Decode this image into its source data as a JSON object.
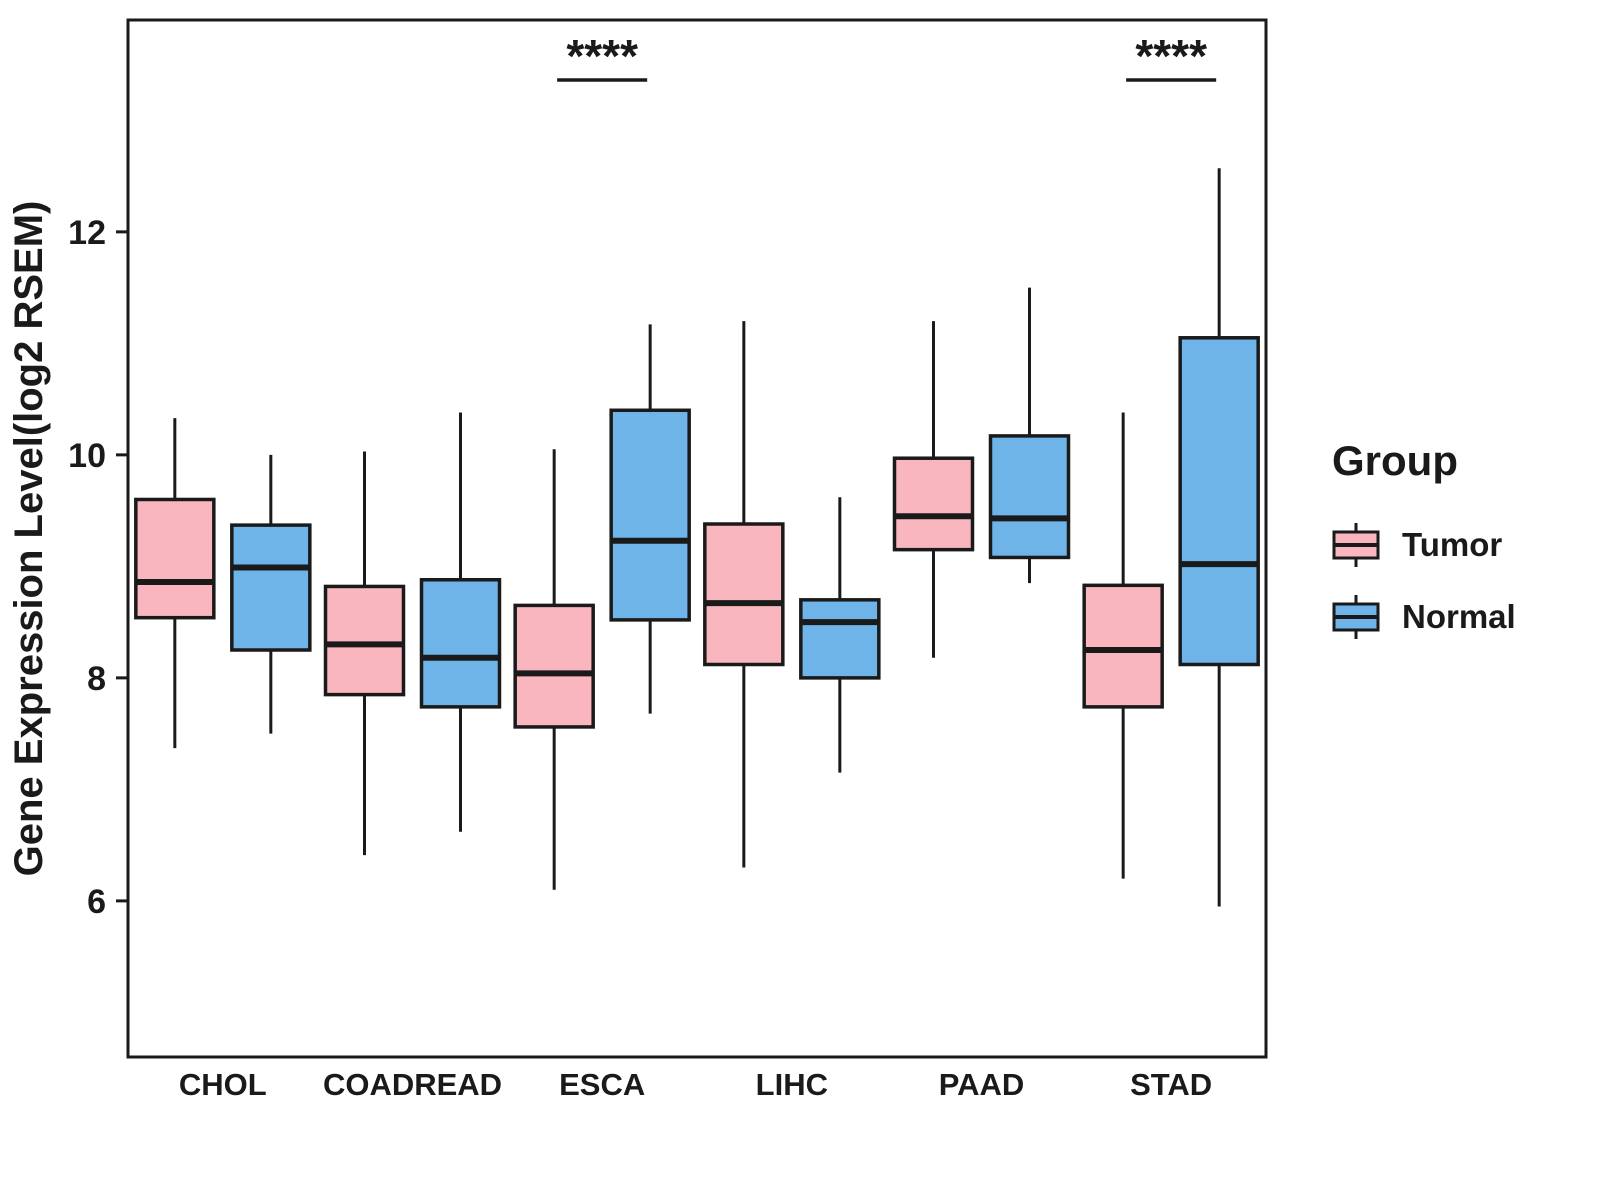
{
  "figure": {
    "background": "#ffffff",
    "frame_color": "#1a1a1a"
  },
  "chart_data": {
    "type": "boxplot",
    "title": "",
    "xlabel": "",
    "ylabel": "Gene Expression Level(log2 RSEM)",
    "ylim": [
      4.6,
      13.9
    ],
    "yticks": [
      6,
      8,
      10,
      12
    ],
    "grid": false,
    "legend_position": "right",
    "categories": [
      "CHOL",
      "COADREAD",
      "ESCA",
      "LIHC",
      "PAAD",
      "STAD"
    ],
    "series": [
      {
        "name": "Tumor",
        "color": "#F9B6BF",
        "boxes": [
          {
            "low": 7.37,
            "q1": 8.54,
            "med": 8.86,
            "q3": 9.6,
            "high": 10.33
          },
          {
            "low": 6.41,
            "q1": 7.85,
            "med": 8.3,
            "q3": 8.82,
            "high": 10.03
          },
          {
            "low": 6.1,
            "q1": 7.56,
            "med": 8.04,
            "q3": 8.65,
            "high": 10.05
          },
          {
            "low": 6.3,
            "q1": 8.12,
            "med": 8.67,
            "q3": 9.38,
            "high": 11.2
          },
          {
            "low": 8.18,
            "q1": 9.15,
            "med": 9.45,
            "q3": 9.97,
            "high": 11.2
          },
          {
            "low": 6.2,
            "q1": 7.74,
            "med": 8.25,
            "q3": 8.83,
            "high": 10.38
          }
        ]
      },
      {
        "name": "Normal",
        "color": "#6FB4E8",
        "boxes": [
          {
            "low": 7.5,
            "q1": 8.25,
            "med": 8.99,
            "q3": 9.37,
            "high": 10.0
          },
          {
            "low": 6.62,
            "q1": 7.74,
            "med": 8.18,
            "q3": 8.88,
            "high": 10.38
          },
          {
            "low": 7.68,
            "q1": 8.52,
            "med": 9.23,
            "q3": 10.4,
            "high": 11.17
          },
          {
            "low": 7.15,
            "q1": 8.0,
            "med": 8.5,
            "q3": 8.7,
            "high": 9.62
          },
          {
            "low": 8.85,
            "q1": 9.08,
            "med": 9.43,
            "q3": 10.17,
            "high": 11.5
          },
          {
            "low": 5.95,
            "q1": 8.12,
            "med": 9.02,
            "q3": 11.05,
            "high": 12.57
          }
        ]
      }
    ],
    "annotations": [
      {
        "category": "ESCA",
        "label": "****"
      },
      {
        "category": "STAD",
        "label": "****"
      }
    ],
    "legend": {
      "title": "Group",
      "entries": [
        {
          "label": "Tumor",
          "color": "#F9B6BF"
        },
        {
          "label": "Normal",
          "color": "#6FB4E8"
        }
      ]
    }
  }
}
